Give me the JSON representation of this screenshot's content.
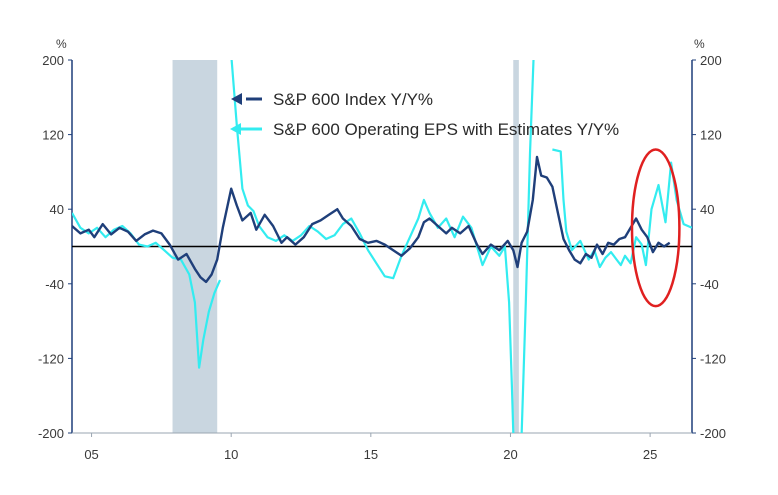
{
  "chart_data": {
    "type": "line",
    "title": "",
    "xlabel": "",
    "ylabel_left": "%",
    "ylabel_right": "%",
    "ylim": [
      -200,
      200
    ],
    "xlim": [
      2004.3,
      2026.5
    ],
    "y_ticks": [
      200,
      120,
      40,
      -40,
      -120,
      -200
    ],
    "y_tick_labels": [
      "200",
      "120",
      "40",
      "-40",
      "-120",
      "-200"
    ],
    "x_ticks": [
      2005,
      2010,
      2015,
      2020,
      2025
    ],
    "x_tick_labels": [
      "05",
      "10",
      "15",
      "20",
      "25"
    ],
    "recessions": [
      {
        "start": 2007.9,
        "end": 2009.5
      },
      {
        "start": 2020.1,
        "end": 2020.3
      }
    ],
    "zero_line": 0,
    "highlight": {
      "shape": "ellipse",
      "color": "#e02020",
      "center_x": 2025.2,
      "center_y": 20,
      "width_years": 1.7,
      "height_pct": 168
    },
    "legend": {
      "placement": "top-center"
    },
    "colors": {
      "index": "#1f3f7a",
      "eps": "#33ecf0",
      "recession": "#c9d6e0",
      "zero": "#000000",
      "axis": "#1f3f7a"
    },
    "series": [
      {
        "name": "S&P 600 Index Y/Y%",
        "color": "#1f3f7a",
        "points": [
          [
            2004.3,
            22
          ],
          [
            2004.6,
            14
          ],
          [
            2004.9,
            18
          ],
          [
            2005.1,
            10
          ],
          [
            2005.4,
            24
          ],
          [
            2005.7,
            13
          ],
          [
            2006.0,
            20
          ],
          [
            2006.3,
            16
          ],
          [
            2006.6,
            6
          ],
          [
            2006.9,
            13
          ],
          [
            2007.2,
            17
          ],
          [
            2007.5,
            14
          ],
          [
            2007.8,
            2
          ],
          [
            2008.1,
            -14
          ],
          [
            2008.4,
            -8
          ],
          [
            2008.7,
            -24
          ],
          [
            2008.9,
            -33
          ],
          [
            2009.1,
            -38
          ],
          [
            2009.3,
            -30
          ],
          [
            2009.5,
            -14
          ],
          [
            2009.7,
            20
          ],
          [
            2009.9,
            48
          ],
          [
            2010.0,
            62
          ],
          [
            2010.2,
            44
          ],
          [
            2010.4,
            28
          ],
          [
            2010.7,
            36
          ],
          [
            2010.9,
            18
          ],
          [
            2011.2,
            34
          ],
          [
            2011.5,
            22
          ],
          [
            2011.8,
            4
          ],
          [
            2012.0,
            10
          ],
          [
            2012.3,
            2
          ],
          [
            2012.6,
            10
          ],
          [
            2012.9,
            24
          ],
          [
            2013.2,
            28
          ],
          [
            2013.5,
            34
          ],
          [
            2013.8,
            40
          ],
          [
            2014.0,
            30
          ],
          [
            2014.3,
            22
          ],
          [
            2014.6,
            8
          ],
          [
            2014.9,
            4
          ],
          [
            2015.2,
            6
          ],
          [
            2015.5,
            2
          ],
          [
            2015.8,
            -4
          ],
          [
            2016.1,
            -10
          ],
          [
            2016.4,
            -2
          ],
          [
            2016.7,
            10
          ],
          [
            2016.9,
            26
          ],
          [
            2017.1,
            30
          ],
          [
            2017.4,
            22
          ],
          [
            2017.7,
            14
          ],
          [
            2017.9,
            20
          ],
          [
            2018.2,
            14
          ],
          [
            2018.5,
            22
          ],
          [
            2018.8,
            2
          ],
          [
            2019.0,
            -8
          ],
          [
            2019.3,
            2
          ],
          [
            2019.6,
            -4
          ],
          [
            2019.9,
            6
          ],
          [
            2020.1,
            -4
          ],
          [
            2020.25,
            -22
          ],
          [
            2020.4,
            4
          ],
          [
            2020.6,
            16
          ],
          [
            2020.8,
            50
          ],
          [
            2020.95,
            96
          ],
          [
            2021.1,
            76
          ],
          [
            2021.3,
            74
          ],
          [
            2021.5,
            64
          ],
          [
            2021.7,
            36
          ],
          [
            2021.9,
            8
          ],
          [
            2022.1,
            -4
          ],
          [
            2022.3,
            -14
          ],
          [
            2022.5,
            -18
          ],
          [
            2022.7,
            -8
          ],
          [
            2022.9,
            -12
          ],
          [
            2023.1,
            2
          ],
          [
            2023.3,
            -8
          ],
          [
            2023.5,
            4
          ],
          [
            2023.7,
            2
          ],
          [
            2023.9,
            8
          ],
          [
            2024.1,
            10
          ],
          [
            2024.3,
            20
          ],
          [
            2024.5,
            30
          ],
          [
            2024.7,
            18
          ],
          [
            2024.9,
            10
          ],
          [
            2025.1,
            -6
          ],
          [
            2025.3,
            4
          ],
          [
            2025.5,
            0
          ],
          [
            2025.7,
            4
          ]
        ]
      },
      {
        "name": "S&P 600 Operating EPS with Estimates Y/Y%",
        "color": "#33ecf0",
        "points": [
          [
            2004.3,
            36
          ],
          [
            2004.6,
            20
          ],
          [
            2004.9,
            14
          ],
          [
            2005.2,
            20
          ],
          [
            2005.5,
            10
          ],
          [
            2005.8,
            18
          ],
          [
            2006.1,
            22
          ],
          [
            2006.4,
            14
          ],
          [
            2006.7,
            2
          ],
          [
            2007.0,
            0
          ],
          [
            2007.3,
            4
          ],
          [
            2007.6,
            -4
          ],
          [
            2007.9,
            -12
          ],
          [
            2008.2,
            -14
          ],
          [
            2008.5,
            -30
          ],
          [
            2008.7,
            -60
          ],
          [
            2008.85,
            -130
          ],
          [
            2009.0,
            -100
          ],
          [
            2009.2,
            -70
          ],
          [
            2009.4,
            -50
          ],
          [
            2009.6,
            -36
          ],
          null,
          [
            2010.0,
            206
          ],
          [
            2010.2,
            130
          ],
          [
            2010.4,
            62
          ],
          [
            2010.6,
            44
          ],
          [
            2010.8,
            38
          ],
          [
            2011.0,
            22
          ],
          [
            2011.3,
            10
          ],
          [
            2011.6,
            6
          ],
          [
            2011.9,
            12
          ],
          [
            2012.2,
            6
          ],
          [
            2012.5,
            12
          ],
          [
            2012.8,
            22
          ],
          [
            2013.1,
            16
          ],
          [
            2013.4,
            8
          ],
          [
            2013.7,
            12
          ],
          [
            2014.0,
            24
          ],
          [
            2014.3,
            30
          ],
          [
            2014.6,
            14
          ],
          [
            2014.9,
            -4
          ],
          [
            2015.2,
            -18
          ],
          [
            2015.5,
            -32
          ],
          [
            2015.8,
            -34
          ],
          [
            2016.1,
            -10
          ],
          [
            2016.4,
            10
          ],
          [
            2016.7,
            30
          ],
          [
            2016.9,
            50
          ],
          [
            2017.1,
            36
          ],
          [
            2017.4,
            20
          ],
          [
            2017.7,
            30
          ],
          [
            2018.0,
            10
          ],
          [
            2018.3,
            32
          ],
          [
            2018.6,
            20
          ],
          [
            2018.8,
            0
          ],
          [
            2019.0,
            -20
          ],
          [
            2019.3,
            0
          ],
          [
            2019.6,
            -10
          ],
          [
            2019.8,
            0
          ],
          [
            2019.95,
            -60
          ],
          [
            2020.05,
            -150
          ],
          [
            2020.15,
            -250
          ],
          null,
          [
            2020.35,
            -250
          ],
          [
            2020.55,
            -60
          ],
          [
            2020.7,
            100
          ],
          [
            2020.85,
            220
          ],
          null,
          [
            2021.5,
            104
          ],
          [
            2021.8,
            102
          ],
          [
            2021.9,
            50
          ],
          [
            2022.0,
            16
          ],
          [
            2022.2,
            -4
          ],
          [
            2022.5,
            6
          ],
          [
            2022.8,
            -14
          ],
          [
            2023.0,
            -4
          ],
          [
            2023.2,
            -22
          ],
          [
            2023.4,
            -12
          ],
          [
            2023.6,
            -6
          ],
          [
            2023.8,
            -14
          ],
          [
            2023.95,
            -20
          ],
          [
            2024.1,
            -10
          ],
          [
            2024.3,
            -18
          ],
          [
            2024.5,
            10
          ],
          [
            2024.7,
            2
          ],
          [
            2024.85,
            -20
          ],
          [
            2025.05,
            40
          ],
          [
            2025.3,
            66
          ],
          [
            2025.55,
            26
          ],
          [
            2025.75,
            90
          ],
          [
            2025.95,
            50
          ],
          [
            2026.2,
            24
          ],
          [
            2026.5,
            20
          ]
        ]
      }
    ]
  }
}
